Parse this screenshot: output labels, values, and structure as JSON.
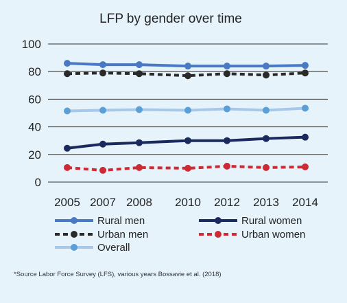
{
  "chart_data": {
    "type": "line",
    "title": "LFP by gender over time",
    "xlabel": "",
    "ylabel": "",
    "categories": [
      "2005",
      "2007",
      "2008",
      "2010",
      "2012",
      "2013",
      "2014"
    ],
    "ylim": [
      0,
      100
    ],
    "yticks": [
      0,
      20,
      40,
      60,
      80,
      100
    ],
    "grid": true,
    "legend_position": "bottom",
    "series": [
      {
        "name": "Rural men",
        "values": [
          86,
          85,
          85,
          84,
          84,
          84,
          84.5
        ],
        "color": "#4a79c4",
        "style": "solid"
      },
      {
        "name": "Rural women",
        "values": [
          24.5,
          27.5,
          28.5,
          30,
          30,
          31.5,
          32.5
        ],
        "color": "#1a2a5e",
        "style": "solid"
      },
      {
        "name": "Urban men",
        "values": [
          78.5,
          79,
          78.5,
          77,
          78.5,
          77.5,
          79
        ],
        "color": "#2a2a2a",
        "style": "dashed"
      },
      {
        "name": "Urban women",
        "values": [
          10.5,
          8.5,
          10.5,
          10,
          11.5,
          10.5,
          11
        ],
        "color": "#cc2b36",
        "style": "dashed"
      },
      {
        "name": "Overall",
        "values": [
          51.5,
          52,
          52.5,
          52,
          53,
          52,
          53.5
        ],
        "color": "#a8c8ea",
        "marker": "#5a9fd6",
        "style": "solid"
      }
    ]
  },
  "source_note": "*Source  Labor Force Survey (LFS), various years  Bossavie et al. (2018)"
}
